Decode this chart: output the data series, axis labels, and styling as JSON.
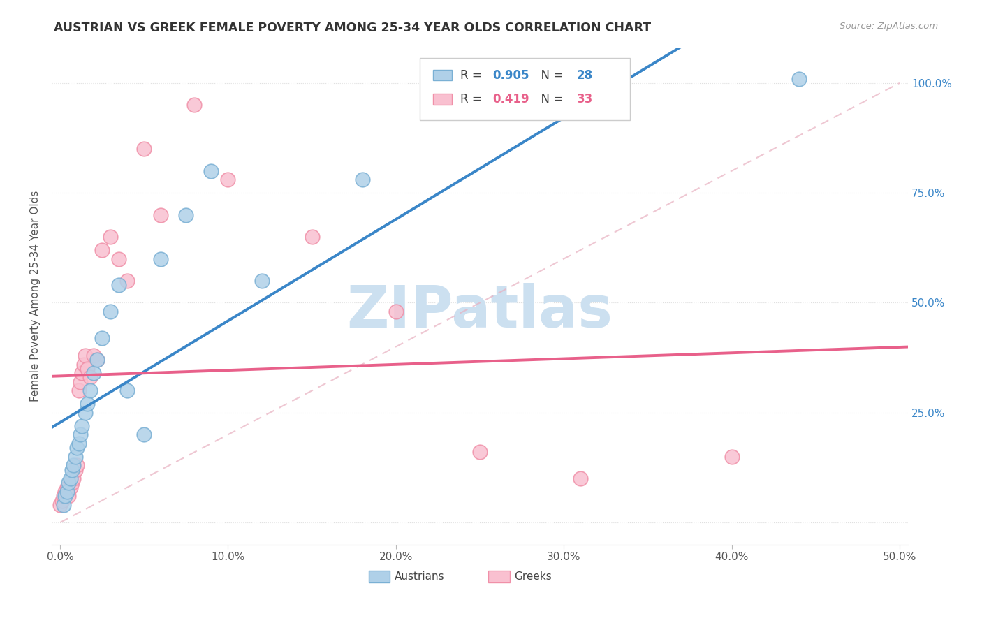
{
  "title": "AUSTRIAN VS GREEK FEMALE POVERTY AMONG 25-34 YEAR OLDS CORRELATION CHART",
  "source": "Source: ZipAtlas.com",
  "ylabel": "Female Poverty Among 25-34 Year Olds",
  "xlim": [
    -0.005,
    0.505
  ],
  "ylim": [
    -0.05,
    1.08
  ],
  "xtick_vals": [
    0.0,
    0.1,
    0.2,
    0.3,
    0.4,
    0.5
  ],
  "xtick_labels": [
    "0.0%",
    "10.0%",
    "20.0%",
    "30.0%",
    "40.0%",
    "50.0%"
  ],
  "ytick_vals": [
    0.0,
    0.25,
    0.5,
    0.75,
    1.0
  ],
  "ytick_labels_right": [
    "",
    "25.0%",
    "50.0%",
    "75.0%",
    "100.0%"
  ],
  "austrians_R": 0.905,
  "austrians_N": 28,
  "greeks_R": 0.419,
  "greeks_N": 33,
  "blue_fill": "#afd0e8",
  "blue_edge": "#7ab0d4",
  "pink_fill": "#f9c0d0",
  "pink_edge": "#f090a8",
  "blue_line_color": "#3a86c8",
  "pink_line_color": "#e8608a",
  "diag_color": "#cccccc",
  "right_axis_color": "#3a86c8",
  "grid_color": "#e0e0e0",
  "watermark_color": "#cce0f0",
  "legend_blue_val_color": "#3a86c8",
  "legend_pink_val_color": "#e8608a",
  "aus_x": [
    0.002,
    0.003,
    0.004,
    0.005,
    0.006,
    0.007,
    0.008,
    0.009,
    0.01,
    0.011,
    0.012,
    0.013,
    0.015,
    0.016,
    0.018,
    0.02,
    0.022,
    0.025,
    0.03,
    0.035,
    0.04,
    0.05,
    0.06,
    0.075,
    0.09,
    0.12,
    0.18,
    0.44
  ],
  "aus_y": [
    0.04,
    0.06,
    0.07,
    0.09,
    0.1,
    0.12,
    0.13,
    0.15,
    0.17,
    0.18,
    0.2,
    0.22,
    0.25,
    0.27,
    0.3,
    0.34,
    0.37,
    0.42,
    0.48,
    0.54,
    0.3,
    0.2,
    0.6,
    0.7,
    0.8,
    0.55,
    0.78,
    1.01
  ],
  "grk_x": [
    0.0,
    0.001,
    0.002,
    0.003,
    0.004,
    0.005,
    0.006,
    0.007,
    0.008,
    0.009,
    0.01,
    0.011,
    0.012,
    0.013,
    0.014,
    0.015,
    0.016,
    0.018,
    0.02,
    0.022,
    0.025,
    0.03,
    0.035,
    0.04,
    0.05,
    0.06,
    0.08,
    0.1,
    0.15,
    0.2,
    0.25,
    0.31,
    0.4
  ],
  "grk_y": [
    0.04,
    0.05,
    0.06,
    0.07,
    0.08,
    0.06,
    0.08,
    0.09,
    0.1,
    0.12,
    0.13,
    0.3,
    0.32,
    0.34,
    0.36,
    0.38,
    0.35,
    0.33,
    0.38,
    0.37,
    0.62,
    0.65,
    0.6,
    0.55,
    0.85,
    0.7,
    0.95,
    0.78,
    0.65,
    0.48,
    0.16,
    0.1,
    0.15
  ]
}
